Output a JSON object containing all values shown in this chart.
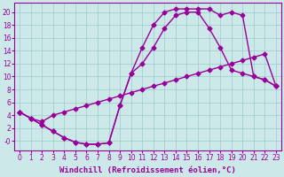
{
  "background_color": "#cce8e8",
  "grid_color": "#99cccc",
  "line_color": "#990099",
  "line_width": 1.0,
  "marker": "D",
  "marker_size": 2.5,
  "xlabel": "Windchill (Refroidissement éolien,°C)",
  "xlabel_fontsize": 6.5,
  "tick_fontsize": 5.5,
  "xlim": [
    -0.5,
    23.5
  ],
  "ylim": [
    -1.5,
    21.5
  ],
  "xticks": [
    0,
    1,
    2,
    3,
    4,
    5,
    6,
    7,
    8,
    9,
    10,
    11,
    12,
    13,
    14,
    15,
    16,
    17,
    18,
    19,
    20,
    21,
    22,
    23
  ],
  "yticks": [
    0,
    2,
    4,
    6,
    8,
    10,
    12,
    14,
    16,
    18,
    20
  ],
  "ytick_labels": [
    "-0",
    "2",
    "4",
    "6",
    "8",
    "10",
    "12",
    "14",
    "16",
    "18",
    "20"
  ],
  "line1_x": [
    0,
    1,
    2,
    3,
    4,
    5,
    6,
    7,
    8,
    9,
    10,
    11,
    12,
    13,
    14,
    15,
    16,
    17,
    18,
    19,
    20,
    21,
    22,
    23
  ],
  "line1_y": [
    4.5,
    3.5,
    3.0,
    4.0,
    4.5,
    5.0,
    5.5,
    6.0,
    6.5,
    7.0,
    7.5,
    8.0,
    8.5,
    9.0,
    9.5,
    10.0,
    10.5,
    11.0,
    11.5,
    12.0,
    12.5,
    13.0,
    13.5,
    8.5
  ],
  "line2_x": [
    0,
    1,
    2,
    3,
    4,
    5,
    6,
    7,
    8,
    9,
    10,
    11,
    12,
    13,
    14,
    15,
    16,
    17,
    18,
    19,
    20,
    21,
    22,
    23
  ],
  "line2_y": [
    4.5,
    3.5,
    2.5,
    1.5,
    0.5,
    -0.2,
    -0.5,
    -0.5,
    -0.3,
    5.5,
    10.5,
    14.5,
    18.0,
    20.0,
    20.5,
    20.5,
    20.5,
    20.5,
    19.5,
    20.0,
    19.5,
    10.0,
    9.5,
    8.5
  ],
  "line3_x": [
    0,
    1,
    2,
    3,
    4,
    5,
    6,
    7,
    8,
    9,
    10,
    11,
    12,
    13,
    14,
    15,
    16,
    17,
    18,
    19,
    20,
    21,
    22,
    23
  ],
  "line3_y": [
    4.5,
    3.5,
    2.5,
    1.5,
    0.5,
    -0.2,
    -0.5,
    -0.5,
    -0.3,
    5.5,
    10.5,
    12.0,
    14.5,
    17.5,
    19.5,
    20.0,
    20.0,
    17.5,
    14.5,
    11.0,
    10.5,
    10.0,
    9.5,
    8.5
  ]
}
